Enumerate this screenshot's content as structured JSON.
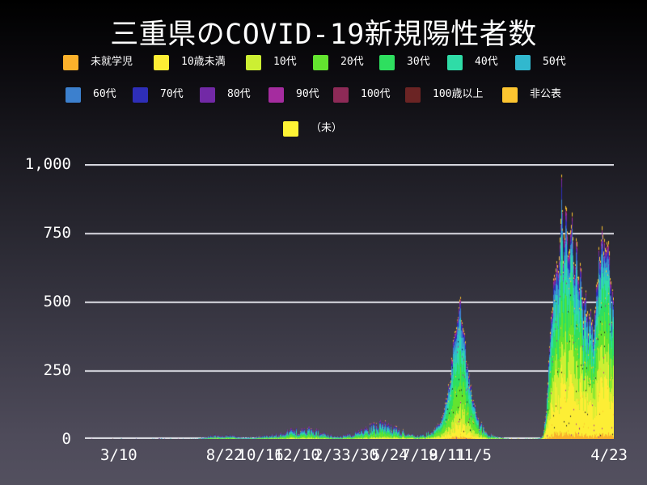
{
  "title": "三重県のCOVID-19新規陽性者数",
  "legend": {
    "rows": [
      {
        "items": [
          {
            "label": "未就学児",
            "color": "#FBB12B"
          },
          {
            "label": "10歳未満",
            "color": "#FDEE35"
          },
          {
            "label": "10代",
            "color": "#CCEF33"
          },
          {
            "label": "20代",
            "color": "#63E42F"
          },
          {
            "label": "30代",
            "color": "#2EDF5F"
          },
          {
            "label": "40代",
            "color": "#2FDCA7"
          },
          {
            "label": "50代",
            "color": "#31B8CE"
          }
        ]
      },
      {
        "items": [
          {
            "label": "60代",
            "color": "#3C80CE"
          },
          {
            "label": "70代",
            "color": "#2E2EB8"
          },
          {
            "label": "80代",
            "color": "#7229A6"
          },
          {
            "label": "90代",
            "color": "#A52C9F"
          },
          {
            "label": "100代",
            "color": "#8D2A57"
          },
          {
            "label": "100歳以上",
            "color": "#6B2424"
          },
          {
            "label": "非公表",
            "color": "#FCC530"
          }
        ]
      },
      {
        "items": [
          {
            "label": "（未）",
            "color": "#FDF335"
          }
        ]
      }
    ]
  },
  "chart_data": {
    "type": "bar",
    "stacked": true,
    "title": "三重県のCOVID-19新規陽性者数",
    "xlabel": "",
    "ylabel": "",
    "ylim": [
      0,
      1000
    ],
    "grid": true,
    "legend_position": "top",
    "yticks": [
      {
        "value": 0,
        "label": "0"
      },
      {
        "value": 250,
        "label": "250"
      },
      {
        "value": 500,
        "label": "500"
      },
      {
        "value": 750,
        "label": "750"
      },
      {
        "value": 1000,
        "label": "1,000"
      }
    ],
    "xticks": [
      {
        "label": "3/10",
        "f": 0.064
      },
      {
        "label": "8/22",
        "f": 0.264
      },
      {
        "label": "10/16",
        "f": 0.332
      },
      {
        "label": "12/10",
        "f": 0.401
      },
      {
        "label": "2/3",
        "f": 0.459
      },
      {
        "label": "3/30",
        "f": 0.52
      },
      {
        "label": "5/24",
        "f": 0.576
      },
      {
        "label": "7/18",
        "f": 0.633
      },
      {
        "label": "9/11",
        "f": 0.685
      },
      {
        "label": "11/5",
        "f": 0.734
      },
      {
        "label": "4/23",
        "f": 0.991
      }
    ],
    "series_stack_bottom_to_top": [
      "未就学児",
      "10歳未満",
      "10代",
      "20代",
      "30代",
      "40代",
      "50代",
      "60代",
      "70代",
      "80代",
      "90代",
      "100代",
      "100歳以上",
      "非公表"
    ],
    "stack_colors": [
      "#FBB12B",
      "#FDEE35",
      "#CCEF33",
      "#63E42F",
      "#2EDF5F",
      "#2FDCA7",
      "#31B8CE",
      "#3C80CE",
      "#2E2EB8",
      "#7229A6",
      "#A52C9F",
      "#8D2A57",
      "#6B2424",
      "#FCC530"
    ],
    "total_envelope": [
      [
        0.0,
        0
      ],
      [
        0.012,
        1
      ],
      [
        0.02,
        0
      ],
      [
        0.031,
        0
      ],
      [
        0.055,
        1
      ],
      [
        0.066,
        2
      ],
      [
        0.075,
        0
      ],
      [
        0.099,
        1
      ],
      [
        0.11,
        0
      ],
      [
        0.145,
        2
      ],
      [
        0.16,
        1
      ],
      [
        0.191,
        1
      ],
      [
        0.21,
        2
      ],
      [
        0.222,
        4
      ],
      [
        0.234,
        8
      ],
      [
        0.245,
        12
      ],
      [
        0.255,
        9
      ],
      [
        0.268,
        14
      ],
      [
        0.28,
        10
      ],
      [
        0.291,
        6
      ],
      [
        0.306,
        5
      ],
      [
        0.321,
        7
      ],
      [
        0.336,
        9
      ],
      [
        0.352,
        12
      ],
      [
        0.367,
        17
      ],
      [
        0.382,
        24
      ],
      [
        0.395,
        32
      ],
      [
        0.405,
        26
      ],
      [
        0.413,
        30
      ],
      [
        0.428,
        36
      ],
      [
        0.443,
        24
      ],
      [
        0.459,
        15
      ],
      [
        0.474,
        9
      ],
      [
        0.489,
        12
      ],
      [
        0.505,
        18
      ],
      [
        0.52,
        28
      ],
      [
        0.535,
        36
      ],
      [
        0.551,
        44
      ],
      [
        0.566,
        50
      ],
      [
        0.581,
        40
      ],
      [
        0.596,
        28
      ],
      [
        0.612,
        18
      ],
      [
        0.627,
        10
      ],
      [
        0.642,
        14
      ],
      [
        0.658,
        28
      ],
      [
        0.673,
        65
      ],
      [
        0.684,
        140
      ],
      [
        0.693,
        260
      ],
      [
        0.7,
        390
      ],
      [
        0.706,
        470
      ],
      [
        0.71,
        505
      ],
      [
        0.714,
        430
      ],
      [
        0.72,
        330
      ],
      [
        0.726,
        240
      ],
      [
        0.734,
        150
      ],
      [
        0.742,
        85
      ],
      [
        0.751,
        42
      ],
      [
        0.762,
        18
      ],
      [
        0.775,
        8
      ],
      [
        0.791,
        4
      ],
      [
        0.806,
        2
      ],
      [
        0.826,
        2
      ],
      [
        0.846,
        2
      ],
      [
        0.861,
        3
      ],
      [
        0.867,
        12
      ],
      [
        0.873,
        110
      ],
      [
        0.878,
        300
      ],
      [
        0.882,
        460
      ],
      [
        0.887,
        570
      ],
      [
        0.891,
        620
      ],
      [
        0.896,
        660
      ],
      [
        0.9,
        800
      ],
      [
        0.902,
        1000
      ],
      [
        0.905,
        690
      ],
      [
        0.911,
        870
      ],
      [
        0.916,
        630
      ],
      [
        0.921,
        840
      ],
      [
        0.925,
        590
      ],
      [
        0.93,
        710
      ],
      [
        0.934,
        540
      ],
      [
        0.939,
        650
      ],
      [
        0.943,
        470
      ],
      [
        0.948,
        520
      ],
      [
        0.953,
        410
      ],
      [
        0.957,
        480
      ],
      [
        0.962,
        395
      ],
      [
        0.966,
        520
      ],
      [
        0.971,
        630
      ],
      [
        0.976,
        700
      ],
      [
        0.98,
        780
      ],
      [
        0.985,
        640
      ],
      [
        0.989,
        750
      ],
      [
        0.994,
        620
      ],
      [
        0.997,
        470
      ],
      [
        1.0,
        560
      ]
    ],
    "age_share_profiles": [
      {
        "to": 0.6,
        "fracs": [
          0.01,
          0.05,
          0.08,
          0.2,
          0.15,
          0.12,
          0.12,
          0.1,
          0.07,
          0.05,
          0.03,
          0.01,
          0.005,
          0.005
        ]
      },
      {
        "to": 0.78,
        "fracs": [
          0.015,
          0.09,
          0.12,
          0.23,
          0.17,
          0.13,
          0.1,
          0.06,
          0.035,
          0.02,
          0.012,
          0.005,
          0.003,
          0.01
        ]
      },
      {
        "to": 1.0,
        "fracs": [
          0.025,
          0.24,
          0.15,
          0.14,
          0.13,
          0.1,
          0.08,
          0.05,
          0.03,
          0.02,
          0.012,
          0.005,
          0.003,
          0.015
        ]
      }
    ],
    "noise": {
      "seed": 9,
      "regions": [
        {
          "to": 0.21,
          "amp": 0.9
        },
        {
          "to": 0.66,
          "amp": 0.5
        },
        {
          "to": 0.745,
          "amp": 0.13
        },
        {
          "to": 0.861,
          "amp": 0.6
        },
        {
          "to": 1.0,
          "amp": 0.18
        }
      ],
      "speck_colors": [
        "#FCC530",
        "#23222B",
        "#A52C9F"
      ]
    }
  },
  "axis_colors": {
    "text": "#FFFFFF",
    "grid": "#DCDCE4"
  },
  "background": {
    "top": "#000000",
    "bottom": "#53505F"
  }
}
